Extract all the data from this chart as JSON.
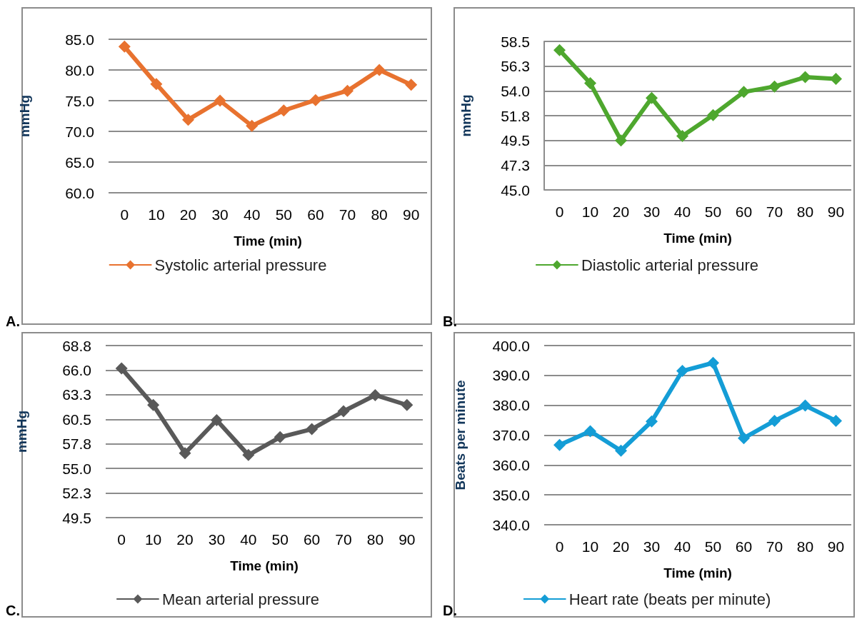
{
  "chart_data": [
    {
      "type": "line",
      "xlabel": "Time (min)",
      "ylabel": "mmHg",
      "annotations": [
        "A."
      ],
      "categories": [
        "0",
        "10",
        "20",
        "30",
        "40",
        "50",
        "60",
        "70",
        "80",
        "90"
      ],
      "series": [
        {
          "name": "Systolic arterial pressure",
          "color": "#e8722f",
          "values": [
            83.8,
            77.7,
            71.9,
            75.0,
            70.9,
            73.4,
            75.1,
            76.6,
            80.0,
            77.6
          ]
        }
      ],
      "ylim": [
        60,
        85
      ],
      "yticks": [
        {
          "value": 60,
          "label": "60.0"
        },
        {
          "value": 65,
          "label": "65.0"
        },
        {
          "value": 70,
          "label": "70.0"
        },
        {
          "value": 75,
          "label": "75.0"
        },
        {
          "value": 80,
          "label": "80.0"
        },
        {
          "value": 85,
          "label": "85.0"
        }
      ],
      "grid": "y",
      "legend": "bottom",
      "marker": "diamond"
    },
    {
      "type": "line",
      "xlabel": "Time (min)",
      "ylabel": "mmHg",
      "annotations": [
        "B."
      ],
      "categories": [
        "0",
        "10",
        "20",
        "30",
        "40",
        "50",
        "60",
        "70",
        "80",
        "90"
      ],
      "series": [
        {
          "name": "Diastolic arterial pressure",
          "color": "#4ea72e",
          "values": [
            57.7,
            54.7,
            49.5,
            53.35,
            49.9,
            51.8,
            53.9,
            54.4,
            55.25,
            55.1
          ]
        }
      ],
      "ylim": [
        45,
        58.5
      ],
      "yticks": [
        {
          "value": 45,
          "label": "45.0"
        },
        {
          "value": 47.25,
          "label": "47.3"
        },
        {
          "value": 49.5,
          "label": "49.5"
        },
        {
          "value": 51.75,
          "label": "51.8"
        },
        {
          "value": 54,
          "label": "54.0"
        },
        {
          "value": 56.25,
          "label": "56.3"
        },
        {
          "value": 58.5,
          "label": "58.5"
        }
      ],
      "grid": "y",
      "legend": "bottom",
      "marker": "diamond"
    },
    {
      "type": "line",
      "xlabel": "Time (min)",
      "ylabel": "mmHg",
      "annotations": [
        "C."
      ],
      "categories": [
        "0",
        "10",
        "20",
        "30",
        "40",
        "50",
        "60",
        "70",
        "80",
        "90"
      ],
      "series": [
        {
          "name": "Mean arterial pressure",
          "color": "#595959",
          "values": [
            66.2,
            62.1,
            56.7,
            60.4,
            56.5,
            58.5,
            59.4,
            61.4,
            63.2,
            62.1
          ]
        }
      ],
      "ylim": [
        49.5,
        68.75
      ],
      "yticks": [
        {
          "value": 49.5,
          "label": "49.5"
        },
        {
          "value": 52.25,
          "label": "52.3"
        },
        {
          "value": 55,
          "label": "55.0"
        },
        {
          "value": 57.75,
          "label": "57.8"
        },
        {
          "value": 60.5,
          "label": "60.5"
        },
        {
          "value": 63.25,
          "label": "63.3"
        },
        {
          "value": 66,
          "label": "66.0"
        },
        {
          "value": 68.75,
          "label": "68.8"
        }
      ],
      "grid": "y",
      "legend": "bottom",
      "marker": "diamond"
    },
    {
      "type": "line",
      "xlabel": "Time (min)",
      "ylabel": "Beats per minute",
      "annotations": [
        "D."
      ],
      "categories": [
        "0",
        "10",
        "20",
        "30",
        "40",
        "50",
        "60",
        "70",
        "80",
        "90"
      ],
      "series": [
        {
          "name": "Heart rate (beats per minute)",
          "color": "#149dd6",
          "values": [
            366.7,
            371.3,
            364.8,
            374.6,
            391.5,
            394.2,
            369.0,
            374.8,
            379.9,
            374.8
          ]
        }
      ],
      "ylim": [
        340,
        400
      ],
      "yticks": [
        {
          "value": 340,
          "label": "340.0"
        },
        {
          "value": 350,
          "label": "350.0"
        },
        {
          "value": 360,
          "label": "360.0"
        },
        {
          "value": 370,
          "label": "370.0"
        },
        {
          "value": 380,
          "label": "380.0"
        },
        {
          "value": 390,
          "label": "390.0"
        },
        {
          "value": 400,
          "label": "400.0"
        }
      ],
      "grid": "y",
      "legend": "bottom",
      "marker": "diamond"
    }
  ]
}
